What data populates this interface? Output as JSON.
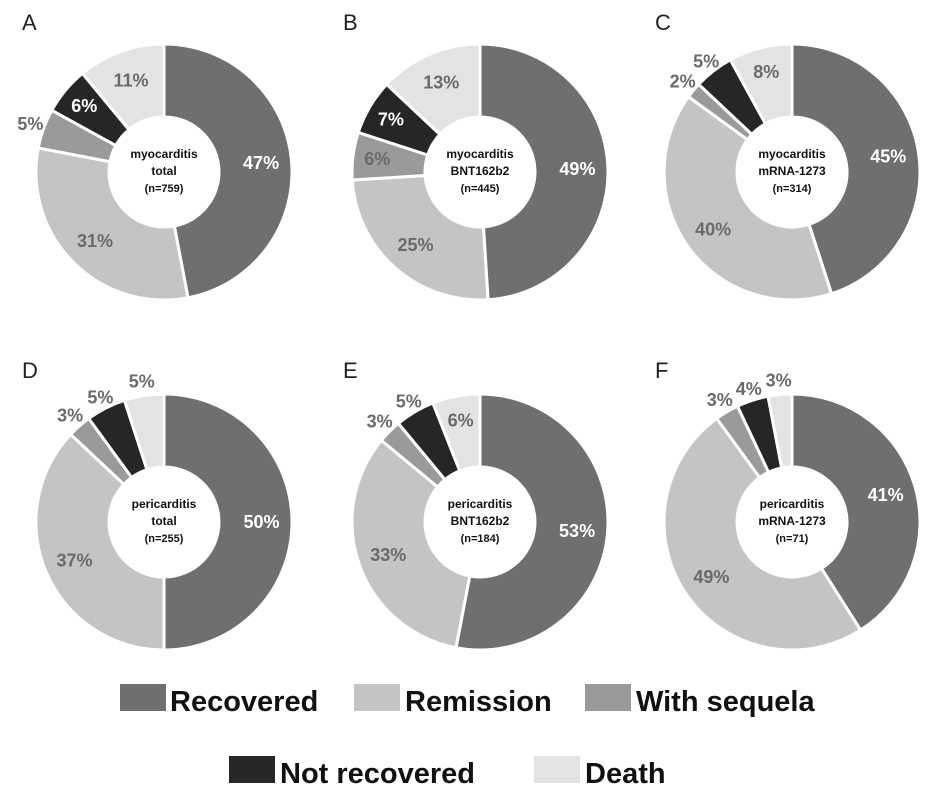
{
  "chart_data": [
    {
      "type": "pie",
      "panel": "A",
      "center_label": [
        "myocarditis",
        "total",
        "(n=759)"
      ],
      "categories": [
        "Recovered",
        "Remission",
        "With sequela",
        "Not recovered",
        "Death"
      ],
      "values": [
        47,
        31,
        5,
        6,
        11
      ],
      "labels": [
        "47%",
        "31%",
        "5%",
        "6%",
        "11%"
      ]
    },
    {
      "type": "pie",
      "panel": "B",
      "center_label": [
        "myocarditis",
        "BNT162b2",
        "(n=445)"
      ],
      "categories": [
        "Recovered",
        "Remission",
        "With sequela",
        "Not recovered",
        "Death"
      ],
      "values": [
        49,
        25,
        6,
        7,
        13
      ],
      "labels": [
        "49%",
        "25%",
        "6%",
        "7%",
        "13%"
      ]
    },
    {
      "type": "pie",
      "panel": "C",
      "center_label": [
        "myocarditis",
        "mRNA-1273",
        "(n=314)"
      ],
      "categories": [
        "Recovered",
        "Remission",
        "With sequela",
        "Not recovered",
        "Death"
      ],
      "values": [
        45,
        40,
        2,
        5,
        8
      ],
      "labels": [
        "45%",
        "40%",
        "2%",
        "5%",
        "8%"
      ]
    },
    {
      "type": "pie",
      "panel": "D",
      "center_label": [
        "pericarditis",
        "total",
        "(n=255)"
      ],
      "categories": [
        "Recovered",
        "Remission",
        "With sequela",
        "Not recovered",
        "Death"
      ],
      "values": [
        50,
        37,
        3,
        5,
        5
      ],
      "labels": [
        "50%",
        "37%",
        "3%",
        "5%",
        "5%"
      ]
    },
    {
      "type": "pie",
      "panel": "E",
      "center_label": [
        "pericarditis",
        "BNT162b2",
        "(n=184)"
      ],
      "categories": [
        "Recovered",
        "Remission",
        "With sequela",
        "Not recovered",
        "Death"
      ],
      "values": [
        53,
        33,
        3,
        5,
        6
      ],
      "labels": [
        "53%",
        "33%",
        "3%",
        "5%",
        "6%"
      ]
    },
    {
      "type": "pie",
      "panel": "F",
      "center_label": [
        "pericarditis",
        "mRNA-1273",
        "(n=71)"
      ],
      "categories": [
        "Recovered",
        "Remission",
        "With sequela",
        "Not recovered",
        "Death"
      ],
      "values": [
        41,
        49,
        3,
        4,
        3
      ],
      "labels": [
        "41%",
        "49%",
        "3%",
        "4%",
        "3%"
      ]
    }
  ],
  "legend": [
    {
      "label": "Recovered",
      "color": "#6f6f6f"
    },
    {
      "label": "Remission",
      "color": "#c4c4c4"
    },
    {
      "label": "With sequela",
      "color": "#9a9a9a"
    },
    {
      "label": "Not recovered",
      "color": "#262626"
    },
    {
      "label": "Death",
      "color": "#e3e3e3"
    }
  ],
  "label_colors": [
    "#ffffff",
    "#6a6a6a",
    "#6a6a6a",
    "#ffffff",
    "#6a6a6a"
  ]
}
